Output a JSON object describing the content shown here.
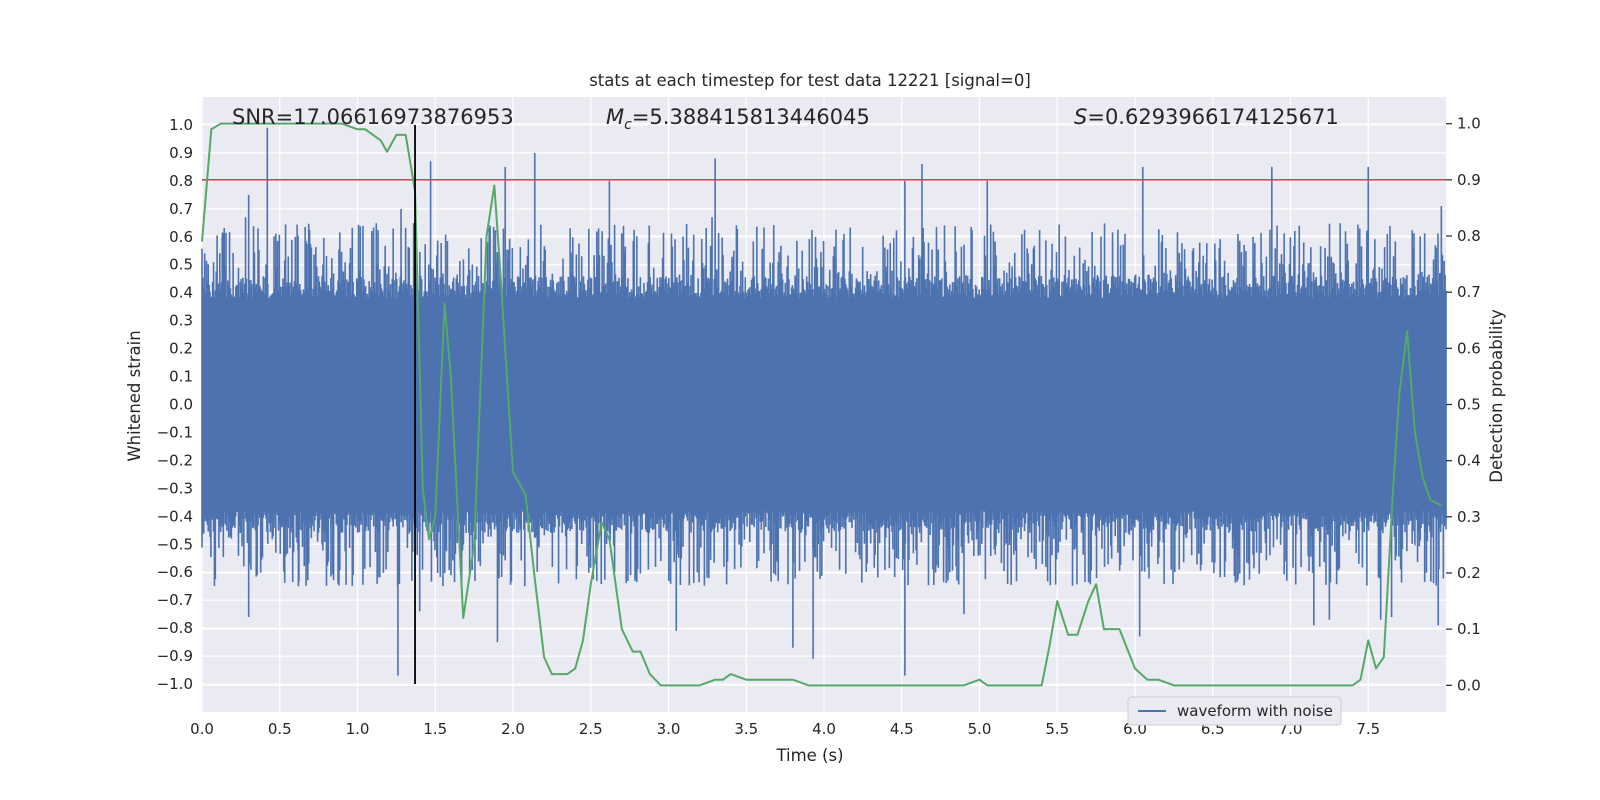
{
  "chart_data": {
    "type": "line",
    "title": "stats at each timestep for test data 12221 [signal=0]",
    "xlabel": "Time (s)",
    "ylabel": "Whitened strain",
    "y2label": "Detection probability",
    "xlim": [
      0.0,
      8.0
    ],
    "ylim": [
      -1.1,
      1.1
    ],
    "y2lim": [
      -0.0475,
      1.0475
    ],
    "xticks": [
      "0.0",
      "0.5",
      "1.0",
      "1.5",
      "2.0",
      "2.5",
      "3.0",
      "3.5",
      "4.0",
      "4.5",
      "5.0",
      "5.5",
      "6.0",
      "6.5",
      "7.0",
      "7.5"
    ],
    "yticks": [
      "1.0",
      "0.9",
      "0.8",
      "0.7",
      "0.6",
      "0.5",
      "0.4",
      "0.3",
      "0.2",
      "0.1",
      "0.0",
      "−0.1",
      "−0.2",
      "−0.3",
      "−0.4",
      "−0.5",
      "−0.6",
      "−0.7",
      "−0.8",
      "−0.9",
      "−1.0"
    ],
    "y2ticks": [
      "1.0",
      "0.9",
      "0.8",
      "0.7",
      "0.6",
      "0.5",
      "0.4",
      "0.3",
      "0.2",
      "0.1",
      "0.0"
    ],
    "grid": true,
    "legend_placement": "lower-right",
    "legend": [
      {
        "label": "waveform with noise",
        "color": "#4c72b0"
      }
    ],
    "annotations": {
      "snr": "SNR=17.06616973876953",
      "mc_prefix": "M",
      "mc_sub": "c",
      "mc_value": "=5.388415813446045",
      "s_prefix": "S",
      "s_value": "=0.6293966174125671"
    },
    "threshold": {
      "axis": "right",
      "y": 0.9,
      "color": "#c44e52"
    },
    "marker_line": {
      "x": 1.37,
      "y_from": -1.0,
      "y_to": 1.0,
      "color": "#000000"
    },
    "colors": {
      "waveform": "#4c72b0",
      "probability": "#55a868",
      "plot_bg": "#eaeaf2",
      "grid": "#ffffff"
    },
    "waveform_noise": {
      "dense_envelope": 0.38,
      "typical_peak": 0.6,
      "max_peak": 0.98
    },
    "waveform_peaks": [
      [
        0.13,
        0.6
      ],
      [
        0.28,
        0.67
      ],
      [
        0.3,
        0.75
      ],
      [
        0.36,
        0.63
      ],
      [
        0.42,
        0.99
      ],
      [
        0.6,
        0.6
      ],
      [
        1.28,
        0.7
      ],
      [
        1.47,
        0.87
      ],
      [
        1.95,
        0.85
      ],
      [
        2.14,
        0.9
      ],
      [
        2.62,
        0.8
      ],
      [
        3.28,
        0.67
      ],
      [
        3.3,
        0.88
      ],
      [
        4.52,
        0.8
      ],
      [
        4.63,
        0.86
      ],
      [
        5.05,
        0.8
      ],
      [
        6.05,
        0.85
      ],
      [
        6.88,
        0.85
      ],
      [
        7.5,
        0.85
      ],
      [
        7.97,
        0.71
      ],
      [
        0.3,
        -0.76
      ],
      [
        0.62,
        -0.65
      ],
      [
        1.26,
        -0.97
      ],
      [
        1.4,
        -0.74
      ],
      [
        1.9,
        -0.85
      ],
      [
        3.05,
        -0.81
      ],
      [
        3.8,
        -0.87
      ],
      [
        3.93,
        -0.91
      ],
      [
        4.52,
        -0.97
      ],
      [
        4.9,
        -0.75
      ],
      [
        6.03,
        -0.83
      ],
      [
        7.15,
        -0.79
      ],
      [
        7.25,
        -0.77
      ],
      [
        7.58,
        -0.77
      ],
      [
        7.65,
        -0.76
      ],
      [
        7.95,
        -0.79
      ]
    ],
    "series": [
      {
        "axis": "right",
        "x": [
          0.0,
          0.03,
          0.06,
          0.12,
          0.2,
          0.3,
          0.4,
          0.5,
          0.6,
          0.7,
          0.8,
          0.9,
          1.0,
          1.05,
          1.1,
          1.15,
          1.19,
          1.25,
          1.31,
          1.37,
          1.42,
          1.46,
          1.5,
          1.56,
          1.6,
          1.68,
          1.75,
          1.83,
          1.88,
          1.92,
          2.0,
          2.08,
          2.14,
          2.2,
          2.25,
          2.3,
          2.35,
          2.4,
          2.45,
          2.5,
          2.57,
          2.62,
          2.7,
          2.77,
          2.82,
          2.88,
          2.95,
          3.0,
          3.05,
          3.1,
          3.2,
          3.3,
          3.35,
          3.4,
          3.5,
          3.55,
          3.6,
          3.7,
          3.8,
          3.9,
          4.0,
          4.1,
          4.2,
          4.3,
          4.4,
          4.5,
          4.6,
          4.7,
          4.8,
          4.9,
          5.0,
          5.05,
          5.1,
          5.2,
          5.3,
          5.4,
          5.45,
          5.5,
          5.57,
          5.63,
          5.7,
          5.75,
          5.8,
          5.87,
          5.9,
          6.0,
          6.08,
          6.15,
          6.25,
          6.35,
          6.5,
          6.65,
          6.75,
          6.8,
          6.85,
          6.9,
          7.0,
          7.15,
          7.3,
          7.4,
          7.45,
          7.5,
          7.55,
          7.6,
          7.66,
          7.7,
          7.75,
          7.8,
          7.85,
          7.9,
          7.97
        ],
        "y": [
          0.79,
          0.89,
          0.99,
          1.0,
          1.0,
          1.0,
          1.0,
          1.0,
          1.0,
          1.0,
          1.0,
          1.0,
          0.99,
          0.99,
          0.98,
          0.97,
          0.95,
          0.98,
          0.98,
          0.88,
          0.35,
          0.26,
          0.3,
          0.68,
          0.55,
          0.12,
          0.25,
          0.8,
          0.89,
          0.73,
          0.38,
          0.34,
          0.19,
          0.05,
          0.02,
          0.02,
          0.02,
          0.03,
          0.08,
          0.18,
          0.29,
          0.26,
          0.1,
          0.06,
          0.06,
          0.02,
          0.0,
          0.0,
          0.0,
          0.0,
          0.0,
          0.01,
          0.01,
          0.02,
          0.01,
          0.01,
          0.01,
          0.01,
          0.01,
          0.0,
          0.0,
          0.0,
          0.0,
          0.0,
          0.0,
          0.0,
          0.0,
          0.0,
          0.0,
          0.0,
          0.01,
          0.0,
          0.0,
          0.0,
          0.0,
          0.0,
          0.07,
          0.15,
          0.09,
          0.09,
          0.15,
          0.18,
          0.1,
          0.1,
          0.1,
          0.03,
          0.01,
          0.01,
          0.0,
          0.0,
          0.0,
          0.0,
          0.0,
          0.0,
          0.0,
          0.0,
          0.0,
          0.0,
          0.0,
          0.0,
          0.01,
          0.08,
          0.03,
          0.05,
          0.35,
          0.52,
          0.63,
          0.45,
          0.37,
          0.33,
          0.32
        ]
      }
    ]
  }
}
